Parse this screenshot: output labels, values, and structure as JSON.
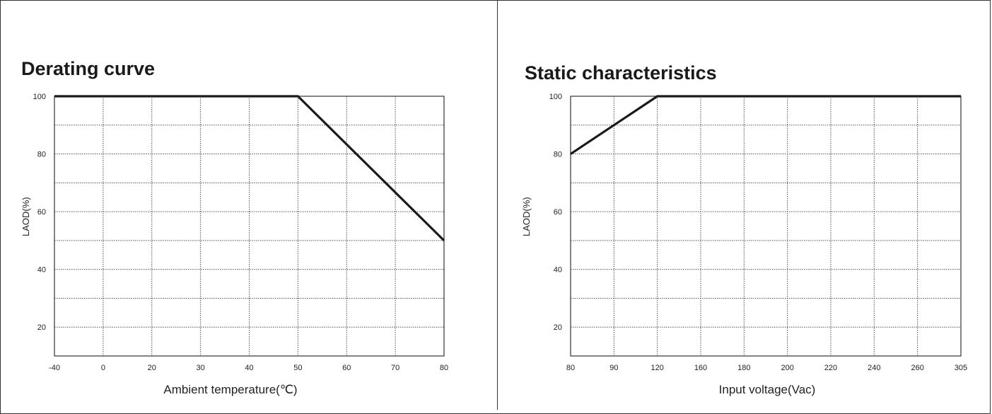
{
  "chart_data": [
    {
      "type": "line",
      "title": "Derating curve",
      "xlabel": "Ambient  temperature(℃)",
      "ylabel": "LAOD(%)",
      "x_ticks": [
        "-40",
        "0",
        "20",
        "30",
        "40",
        "50",
        "60",
        "70",
        "80"
      ],
      "y_ticks": [
        20,
        40,
        60,
        80,
        100
      ],
      "ylim": [
        10,
        100
      ],
      "grid": true,
      "series": [
        {
          "x": [
            "-40",
            "50",
            "80"
          ],
          "values": [
            100,
            100,
            50
          ]
        }
      ]
    },
    {
      "type": "line",
      "title": "Static characteristics",
      "xlabel": "Input voltage(Vac)",
      "ylabel": "LAOD(%)",
      "x_ticks": [
        "80",
        "90",
        "120",
        "160",
        "180",
        "200",
        "220",
        "240",
        "260",
        "305"
      ],
      "y_ticks": [
        20,
        40,
        60,
        80,
        100
      ],
      "ylim": [
        10,
        100
      ],
      "grid": true,
      "series": [
        {
          "x": [
            "80",
            "120",
            "305"
          ],
          "values": [
            80,
            100,
            100
          ]
        }
      ]
    }
  ],
  "style": {
    "line_color": "#1a1a1a",
    "grid_color": "#555555",
    "frame_color": "#333333"
  }
}
